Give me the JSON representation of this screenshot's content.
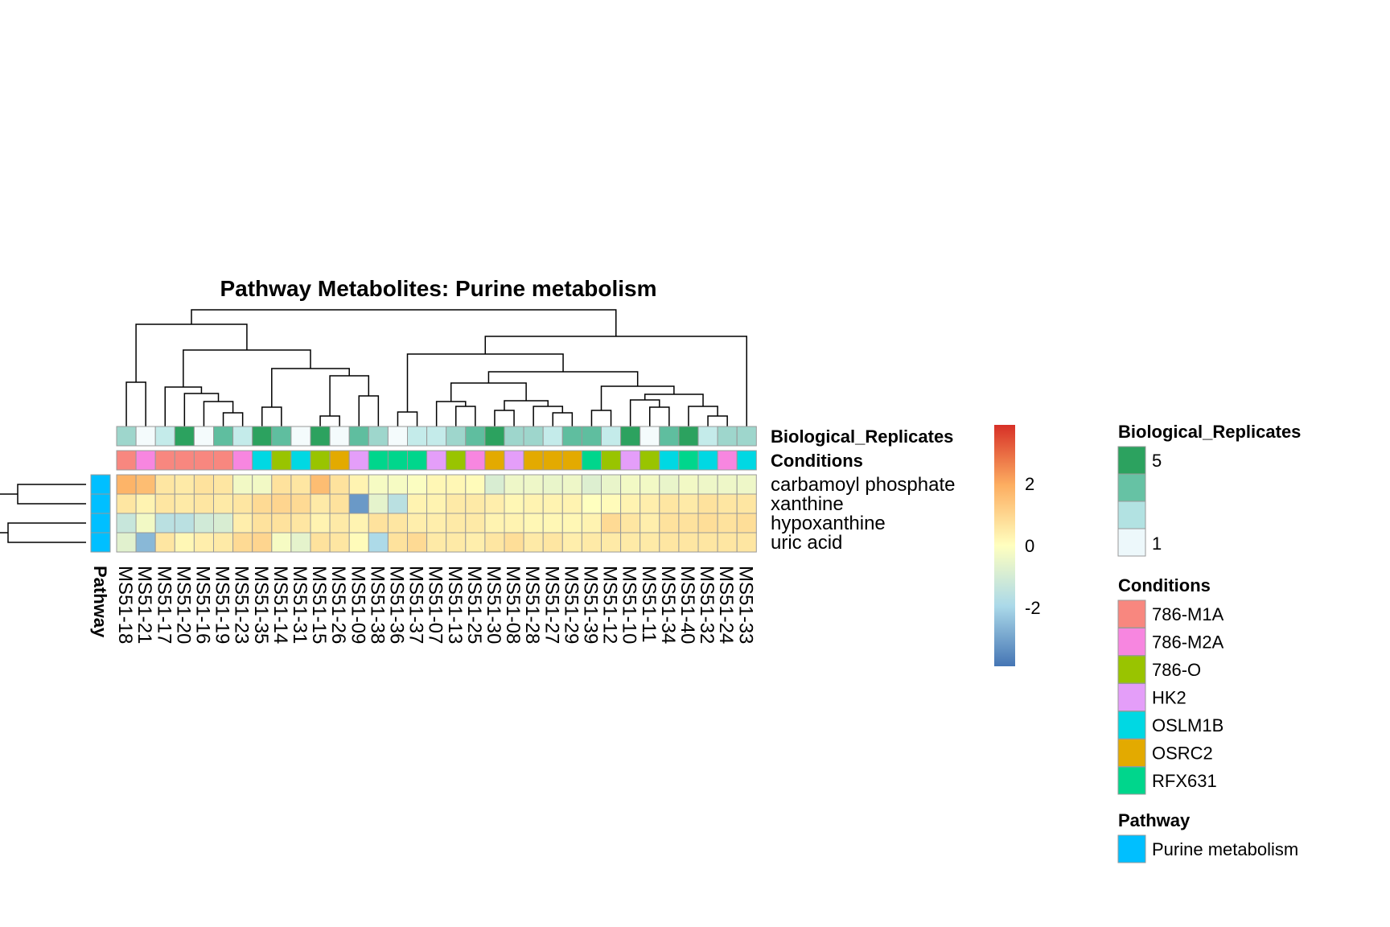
{
  "chart_data": {
    "type": "heatmap",
    "title": "Pathway  Metabolites:  Purine metabolism",
    "columns": [
      "MS51-18",
      "MS51-21",
      "MS51-17",
      "MS51-20",
      "MS51-16",
      "MS51-19",
      "MS51-23",
      "MS51-35",
      "MS51-14",
      "MS51-31",
      "MS51-15",
      "MS51-26",
      "MS51-09",
      "MS51-38",
      "MS51-36",
      "MS51-37",
      "MS51-07",
      "MS51-13",
      "MS51-25",
      "MS51-30",
      "MS51-08",
      "MS51-28",
      "MS51-27",
      "MS51-29",
      "MS51-39",
      "MS51-12",
      "MS51-10",
      "MS51-11",
      "MS51-34",
      "MS51-40",
      "MS51-32",
      "MS51-24",
      "MS51-33"
    ],
    "rows": [
      "carbamoyl phosphate",
      "xanthine",
      "hypoxanthine",
      "uric acid"
    ],
    "values": [
      [
        1.8,
        1.6,
        0.6,
        0.5,
        0.7,
        0.6,
        -0.3,
        -0.3,
        0.7,
        0.6,
        1.6,
        0.7,
        0.3,
        -0.2,
        -0.2,
        -0.1,
        0.2,
        0.2,
        0.1,
        -0.9,
        -0.4,
        -0.4,
        -0.5,
        -0.4,
        -0.8,
        -0.5,
        -0.3,
        -0.3,
        -0.5,
        -0.3,
        -0.4,
        -0.4,
        -0.4
      ],
      [
        0.6,
        0.3,
        0.6,
        0.5,
        0.6,
        0.5,
        0.6,
        0.9,
        1.0,
        0.9,
        0.5,
        0.7,
        -3.2,
        -0.6,
        -1.6,
        0.3,
        0.3,
        0.5,
        0.5,
        0.4,
        0.2,
        0.3,
        0.3,
        0.3,
        0.0,
        0.1,
        0.3,
        0.4,
        0.6,
        0.5,
        0.7,
        0.6,
        0.6
      ],
      [
        -1.3,
        -0.3,
        -1.6,
        -1.6,
        -1.1,
        -0.9,
        0.4,
        0.7,
        0.7,
        0.6,
        0.3,
        0.5,
        0.3,
        0.7,
        0.6,
        0.4,
        0.4,
        0.5,
        0.5,
        0.3,
        0.3,
        0.2,
        0.2,
        0.2,
        0.3,
        0.9,
        0.6,
        0.4,
        0.7,
        0.7,
        0.8,
        0.7,
        0.8
      ],
      [
        -0.7,
        -2.6,
        0.6,
        0.2,
        0.4,
        0.5,
        0.9,
        1.0,
        -0.2,
        -0.6,
        0.7,
        0.6,
        0.1,
        -1.9,
        0.7,
        0.9,
        0.5,
        0.5,
        0.4,
        0.6,
        0.8,
        0.5,
        0.6,
        0.4,
        0.5,
        0.5,
        0.5,
        0.5,
        0.6,
        0.6,
        0.6,
        0.6,
        0.6
      ]
    ],
    "annotations": {
      "Biological_Replicates": [
        3,
        1,
        2,
        5,
        1,
        4,
        2,
        5,
        4,
        1,
        5,
        1,
        4,
        3,
        1,
        2,
        2,
        3,
        4,
        5,
        3,
        3,
        2,
        4,
        4,
        2,
        5,
        1,
        4,
        5,
        2,
        3,
        3
      ],
      "Conditions": [
        "786-M1A",
        "786-M2A",
        "786-M1A",
        "786-M1A",
        "786-M1A",
        "786-M1A",
        "786-M2A",
        "OSLM1B",
        "786-O",
        "OSLM1B",
        "786-O",
        "OSRC2",
        "HK2",
        "RFX631",
        "RFX631",
        "RFX631",
        "HK2",
        "786-O",
        "786-M2A",
        "OSRC2",
        "HK2",
        "OSRC2",
        "OSRC2",
        "OSRC2",
        "RFX631",
        "786-O",
        "HK2",
        "786-O",
        "OSLM1B",
        "RFX631",
        "OSLM1B",
        "786-M2A",
        "OSLM1B"
      ],
      "Pathway": [
        "Purine metabolism",
        "Purine metabolism",
        "Purine metabolism",
        "Purine metabolism"
      ]
    },
    "annotation_labels": [
      "Biological_Replicates",
      "Conditions"
    ],
    "row_side_label": "Pathway",
    "scale": {
      "ticks": [
        2,
        0,
        -2
      ],
      "range": [
        -3.9,
        3.9
      ],
      "colors": [
        "#4575b4",
        "#abd9e9",
        "#ffffbf",
        "#fdae61",
        "#d73027"
      ]
    },
    "legends": {
      "biological_replicates": {
        "title": "Biological_Replicates",
        "levels": [
          "5",
          "",
          "",
          "1"
        ],
        "colors": [
          "#2ca25f",
          "#66c2a4",
          "#b2e2e2",
          "#edf8fb"
        ]
      },
      "conditions": {
        "title": "Conditions",
        "items": [
          {
            "name": "786-M1A",
            "color": "#f8877f"
          },
          {
            "name": "786-M2A",
            "color": "#f786e0"
          },
          {
            "name": "786-O",
            "color": "#99c400"
          },
          {
            "name": "HK2",
            "color": "#e49ef9"
          },
          {
            "name": "OSLM1B",
            "color": "#00d8e3"
          },
          {
            "name": "OSRC2",
            "color": "#e3aa00"
          },
          {
            "name": "RFX631",
            "color": "#00d68c"
          }
        ]
      },
      "pathway": {
        "title": "Pathway",
        "items": [
          {
            "name": "Purine metabolism",
            "color": "#00bfff"
          }
        ]
      }
    }
  }
}
